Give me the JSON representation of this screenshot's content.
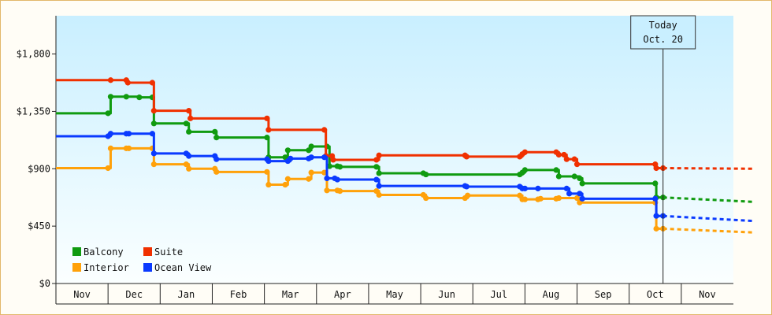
{
  "chart_data": {
    "type": "line",
    "title": "",
    "xlabel": "",
    "ylabel": "",
    "ylim": [
      0,
      2100
    ],
    "yticks": [
      0,
      450,
      900,
      1350,
      1800
    ],
    "ytick_labels": [
      "$0",
      "$450",
      "$900",
      "$1,350",
      "$1,800"
    ],
    "months": [
      "Nov",
      "Dec",
      "Jan",
      "Feb",
      "Mar",
      "Apr",
      "May",
      "Jun",
      "Jul",
      "Aug",
      "Sep",
      "Oct",
      "Nov"
    ],
    "x_range": [
      0,
      13
    ],
    "today": {
      "label_line1": "Today",
      "label_line2": "Oct. 20",
      "x": 11.65
    },
    "legend_placement": "bottom-left",
    "series": [
      {
        "name": "Balcony",
        "color": "#109b10",
        "points": [
          [
            0,
            1335
          ],
          [
            1,
            1335
          ],
          [
            1.05,
            1465
          ],
          [
            1.35,
            1465
          ],
          [
            1.6,
            1460
          ],
          [
            1.85,
            1460
          ],
          [
            1.88,
            1255
          ],
          [
            2.5,
            1255
          ],
          [
            2.55,
            1190
          ],
          [
            3.05,
            1190
          ],
          [
            3.08,
            1145
          ],
          [
            4.05,
            1145
          ],
          [
            4.08,
            990
          ],
          [
            4.4,
            990
          ],
          [
            4.45,
            1045
          ],
          [
            4.85,
            1045
          ],
          [
            4.9,
            1075
          ],
          [
            5.2,
            1075
          ],
          [
            5.25,
            920
          ],
          [
            5.4,
            920
          ],
          [
            5.45,
            915
          ],
          [
            6.15,
            915
          ],
          [
            6.2,
            865
          ],
          [
            7.05,
            865
          ],
          [
            7.1,
            855
          ],
          [
            8.9,
            855
          ],
          [
            8.95,
            870
          ],
          [
            9.0,
            890
          ],
          [
            9.6,
            890
          ],
          [
            9.65,
            840
          ],
          [
            9.95,
            840
          ],
          [
            10.05,
            825
          ],
          [
            10.1,
            785
          ],
          [
            11.5,
            785
          ],
          [
            11.52,
            675
          ],
          [
            11.65,
            675
          ]
        ],
        "forecast": [
          [
            11.65,
            675
          ],
          [
            13.4,
            640
          ]
        ]
      },
      {
        "name": "Suite",
        "color": "#f03000",
        "points": [
          [
            0,
            1595
          ],
          [
            1.05,
            1595
          ],
          [
            1.35,
            1595
          ],
          [
            1.38,
            1575
          ],
          [
            1.85,
            1575
          ],
          [
            1.88,
            1355
          ],
          [
            2.55,
            1355
          ],
          [
            2.58,
            1295
          ],
          [
            4.05,
            1295
          ],
          [
            4.08,
            1205
          ],
          [
            5.15,
            1205
          ],
          [
            5.18,
            1000
          ],
          [
            5.3,
            1000
          ],
          [
            5.32,
            970
          ],
          [
            6.15,
            970
          ],
          [
            6.2,
            1005
          ],
          [
            7.85,
            1005
          ],
          [
            7.88,
            995
          ],
          [
            8.9,
            995
          ],
          [
            8.95,
            1015
          ],
          [
            9.0,
            1030
          ],
          [
            9.6,
            1030
          ],
          [
            9.65,
            1010
          ],
          [
            9.75,
            1010
          ],
          [
            9.8,
            975
          ],
          [
            9.95,
            975
          ],
          [
            10.0,
            935
          ],
          [
            11.5,
            935
          ],
          [
            11.52,
            905
          ],
          [
            11.65,
            905
          ]
        ],
        "forecast": [
          [
            11.65,
            905
          ],
          [
            13.4,
            900
          ]
        ]
      },
      {
        "name": "Interior",
        "color": "#ffa10a",
        "points": [
          [
            0,
            905
          ],
          [
            1.0,
            905
          ],
          [
            1.05,
            1060
          ],
          [
            1.35,
            1060
          ],
          [
            1.4,
            1060
          ],
          [
            1.85,
            1060
          ],
          [
            1.88,
            935
          ],
          [
            2.5,
            935
          ],
          [
            2.55,
            900
          ],
          [
            3.05,
            900
          ],
          [
            3.08,
            875
          ],
          [
            4.05,
            875
          ],
          [
            4.08,
            775
          ],
          [
            4.4,
            775
          ],
          [
            4.45,
            820
          ],
          [
            4.85,
            820
          ],
          [
            4.9,
            870
          ],
          [
            5.15,
            870
          ],
          [
            5.2,
            730
          ],
          [
            5.4,
            730
          ],
          [
            5.45,
            725
          ],
          [
            6.15,
            725
          ],
          [
            6.2,
            695
          ],
          [
            7.05,
            695
          ],
          [
            7.1,
            670
          ],
          [
            7.85,
            670
          ],
          [
            7.9,
            690
          ],
          [
            8.9,
            690
          ],
          [
            8.95,
            660
          ],
          [
            9.0,
            660
          ],
          [
            9.25,
            660
          ],
          [
            9.3,
            665
          ],
          [
            9.6,
            665
          ],
          [
            9.65,
            670
          ],
          [
            10.0,
            670
          ],
          [
            10.05,
            635
          ],
          [
            11.5,
            635
          ],
          [
            11.52,
            430
          ],
          [
            11.65,
            430
          ]
        ],
        "forecast": [
          [
            11.65,
            430
          ],
          [
            13.4,
            400
          ]
        ]
      },
      {
        "name": "Ocean View",
        "color": "#0a3aff",
        "points": [
          [
            0,
            1155
          ],
          [
            1.0,
            1155
          ],
          [
            1.05,
            1175
          ],
          [
            1.35,
            1175
          ],
          [
            1.4,
            1175
          ],
          [
            1.85,
            1175
          ],
          [
            1.88,
            1020
          ],
          [
            2.5,
            1020
          ],
          [
            2.55,
            1000
          ],
          [
            3.05,
            1000
          ],
          [
            3.08,
            975
          ],
          [
            4.05,
            975
          ],
          [
            4.08,
            960
          ],
          [
            4.45,
            960
          ],
          [
            4.5,
            980
          ],
          [
            4.85,
            980
          ],
          [
            4.9,
            990
          ],
          [
            5.15,
            990
          ],
          [
            5.2,
            825
          ],
          [
            5.35,
            825
          ],
          [
            5.4,
            815
          ],
          [
            6.15,
            815
          ],
          [
            6.2,
            765
          ],
          [
            7.85,
            765
          ],
          [
            7.88,
            760
          ],
          [
            8.9,
            760
          ],
          [
            8.95,
            745
          ],
          [
            9.0,
            745
          ],
          [
            9.25,
            745
          ],
          [
            9.8,
            745
          ],
          [
            9.85,
            705
          ],
          [
            10.05,
            705
          ],
          [
            10.1,
            665
          ],
          [
            11.5,
            665
          ],
          [
            11.52,
            530
          ],
          [
            11.65,
            530
          ]
        ],
        "forecast": [
          [
            11.65,
            530
          ],
          [
            13.4,
            490
          ]
        ]
      }
    ]
  }
}
